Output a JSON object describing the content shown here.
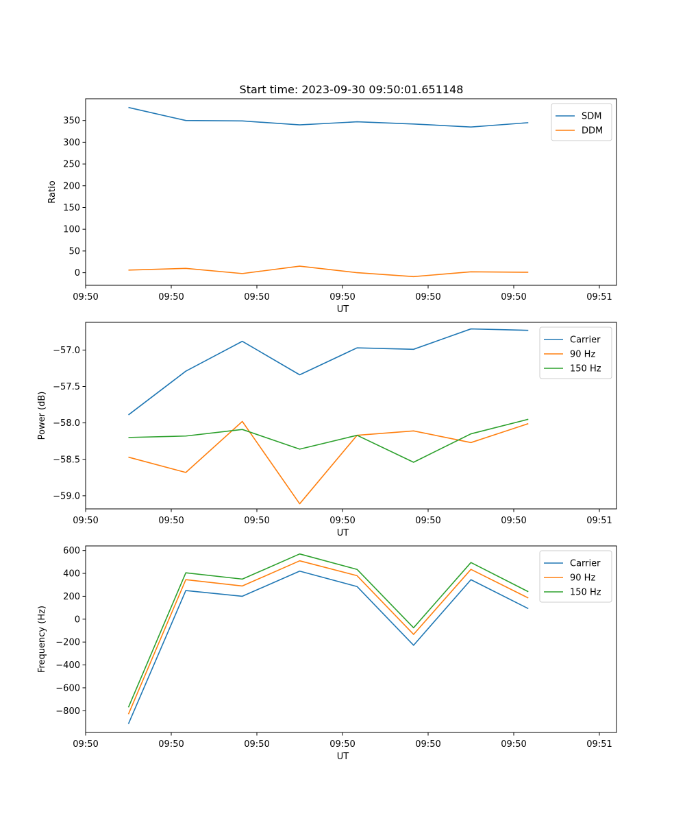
{
  "figure": {
    "title": "Start time: 2023-09-30 09:50:01.651148"
  },
  "colors": {
    "blue": "#1f77b4",
    "orange": "#ff7f0e",
    "green": "#2ca02c"
  },
  "chart_data": [
    {
      "type": "line",
      "title": "Start time: 2023-09-30 09:50:01.651148",
      "xlabel": "UT",
      "ylabel": "Ratio",
      "x": [
        0.5,
        1.17,
        1.83,
        2.5,
        3.17,
        3.83,
        4.5,
        5.17
      ],
      "xlim": [
        0,
        6.2
      ],
      "xticks": [
        0,
        1,
        2,
        3,
        4,
        5,
        6
      ],
      "xtick_labels": [
        "09:50",
        "09:50",
        "09:50",
        "09:50",
        "09:50",
        "09:50",
        "09:51"
      ],
      "ylim": [
        -29,
        400
      ],
      "yticks": [
        0,
        50,
        100,
        150,
        200,
        250,
        300,
        350
      ],
      "ytick_labels": [
        "0",
        "50",
        "100",
        "150",
        "200",
        "250",
        "300",
        "350"
      ],
      "legend_position": "top-right",
      "series": [
        {
          "name": "SDM",
          "color": "#1f77b4",
          "values": [
            380,
            350,
            349,
            340,
            347,
            342,
            335,
            345
          ]
        },
        {
          "name": "DDM",
          "color": "#ff7f0e",
          "values": [
            6,
            10,
            -2,
            15,
            0,
            -9,
            2,
            1
          ]
        }
      ]
    },
    {
      "type": "line",
      "xlabel": "UT",
      "ylabel": "Power (dB)",
      "x": [
        0.5,
        1.17,
        1.83,
        2.5,
        3.17,
        3.83,
        4.5,
        5.17
      ],
      "xlim": [
        0,
        6.2
      ],
      "xticks": [
        0,
        1,
        2,
        3,
        4,
        5,
        6
      ],
      "xtick_labels": [
        "09:50",
        "09:50",
        "09:50",
        "09:50",
        "09:50",
        "09:50",
        "09:51"
      ],
      "ylim": [
        -59.18,
        -56.62
      ],
      "yticks": [
        -59.0,
        -58.5,
        -58.0,
        -57.5,
        -57.0
      ],
      "ytick_labels": [
        "−59.0",
        "−58.5",
        "−58.0",
        "−57.5",
        "−57.0"
      ],
      "legend_position": "top-right",
      "series": [
        {
          "name": "Carrier",
          "color": "#1f77b4",
          "values": [
            -57.89,
            -57.29,
            -56.88,
            -57.34,
            -56.97,
            -56.99,
            -56.71,
            -56.73
          ]
        },
        {
          "name": "90 Hz",
          "color": "#ff7f0e",
          "values": [
            -58.47,
            -58.68,
            -57.98,
            -59.11,
            -58.17,
            -58.11,
            -58.27,
            -58.01
          ]
        },
        {
          "name": "150 Hz",
          "color": "#2ca02c",
          "values": [
            -58.2,
            -58.18,
            -58.09,
            -58.36,
            -58.17,
            -58.54,
            -58.15,
            -57.95
          ]
        }
      ]
    },
    {
      "type": "line",
      "xlabel": "UT",
      "ylabel": "Frequency (Hz)",
      "x": [
        0.5,
        1.17,
        1.83,
        2.5,
        3.17,
        3.83,
        4.5,
        5.17
      ],
      "xlim": [
        0,
        6.2
      ],
      "xticks": [
        0,
        1,
        2,
        3,
        4,
        5,
        6
      ],
      "xtick_labels": [
        "09:50",
        "09:50",
        "09:50",
        "09:50",
        "09:50",
        "09:50",
        "09:51"
      ],
      "ylim": [
        -990,
        640
      ],
      "yticks": [
        -800,
        -600,
        -400,
        -200,
        0,
        200,
        400,
        600
      ],
      "ytick_labels": [
        "−800",
        "−600",
        "−400",
        "−200",
        "0",
        "200",
        "400",
        "600"
      ],
      "legend_position": "top-right",
      "series": [
        {
          "name": "Carrier",
          "color": "#1f77b4",
          "values": [
            -915,
            250,
            200,
            420,
            285,
            -228,
            345,
            92
          ]
        },
        {
          "name": "90 Hz",
          "color": "#ff7f0e",
          "values": [
            -830,
            345,
            290,
            510,
            380,
            -133,
            435,
            185
          ]
        },
        {
          "name": "150 Hz",
          "color": "#2ca02c",
          "values": [
            -770,
            405,
            350,
            570,
            435,
            -75,
            495,
            240
          ]
        }
      ]
    }
  ]
}
